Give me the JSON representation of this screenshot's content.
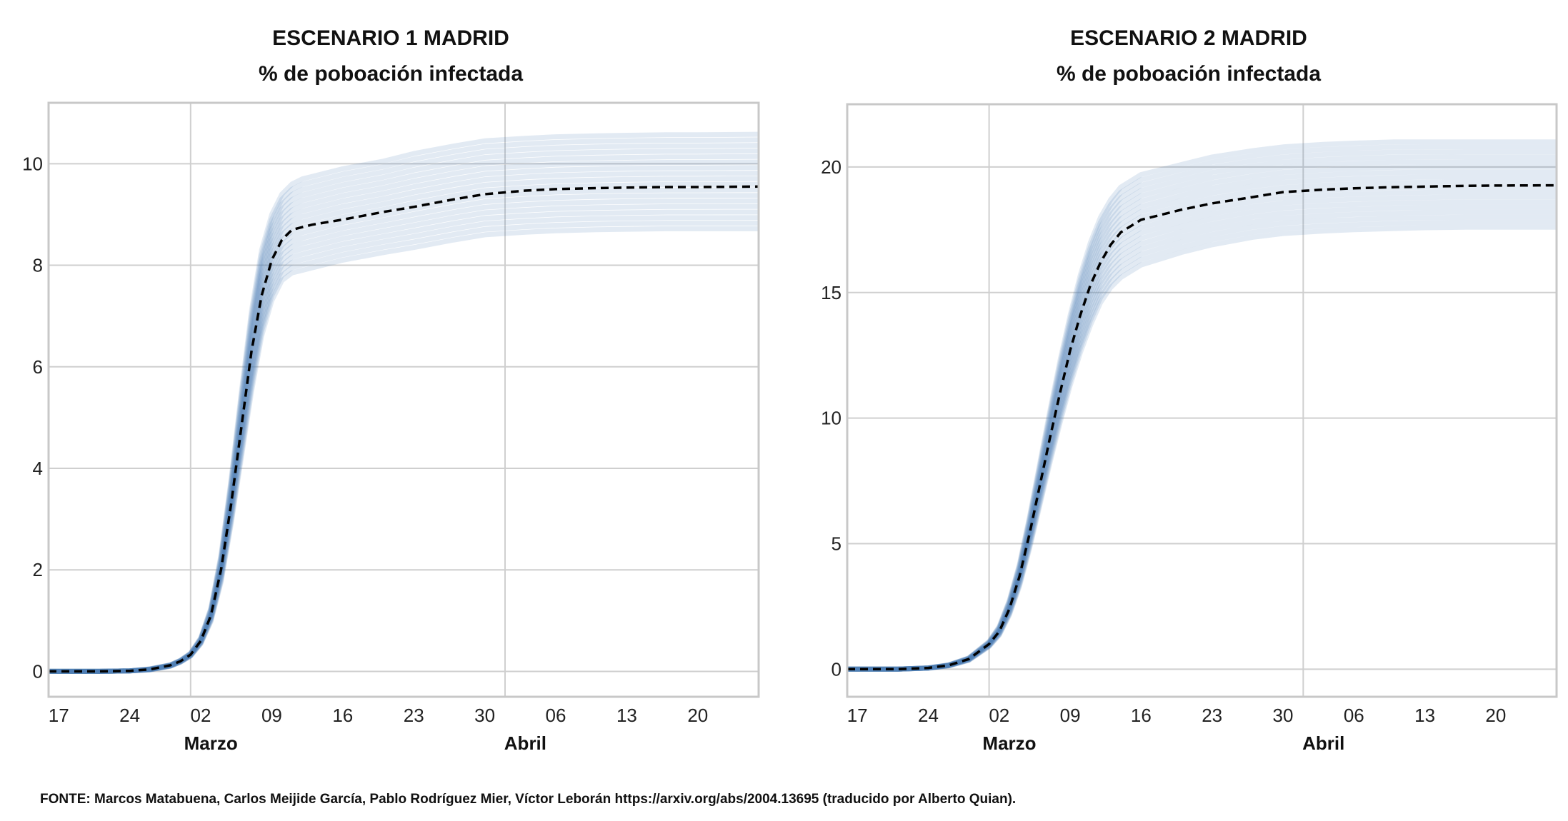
{
  "chart_data": [
    {
      "type": "line",
      "title": "ESCENARIO 1 MADRID",
      "subtitle": "% de poboación infectada",
      "x_tick_labels": [
        "17",
        "24",
        "02",
        "09",
        "16",
        "23",
        "30",
        "06",
        "13",
        "20"
      ],
      "x_ticks": [
        "2020-02-17",
        "2020-02-24",
        "2020-03-02",
        "2020-03-09",
        "2020-03-16",
        "2020-03-23",
        "2020-03-30",
        "2020-04-06",
        "2020-04-13",
        "2020-04-20"
      ],
      "month_labels": [
        {
          "date": "2020-03-03",
          "label": "Marzo"
        },
        {
          "date": "2020-04-03",
          "label": "Abril"
        }
      ],
      "month_separators": [
        "2020-03-01",
        "2020-04-01"
      ],
      "xlim": [
        "2020-02-16",
        "2020-04-26"
      ],
      "ylim": [
        -0.5,
        11.2
      ],
      "yticks": [
        0,
        2,
        4,
        6,
        8,
        10
      ],
      "grid": true,
      "band_line_count": 18,
      "series": [
        {
          "style": "dashed-black",
          "x": [
            "2020-02-16",
            "2020-02-21",
            "2020-02-24",
            "2020-02-26",
            "2020-02-28",
            "2020-02-29",
            "2020-03-01",
            "2020-03-02",
            "2020-03-03",
            "2020-03-04",
            "2020-03-05",
            "2020-03-06",
            "2020-03-07",
            "2020-03-08",
            "2020-03-09",
            "2020-03-10",
            "2020-03-11",
            "2020-03-12",
            "2020-03-13",
            "2020-03-16",
            "2020-03-20",
            "2020-03-23",
            "2020-03-27",
            "2020-03-30",
            "2020-04-03",
            "2020-04-06",
            "2020-04-10",
            "2020-04-13",
            "2020-04-17",
            "2020-04-20",
            "2020-04-26"
          ],
          "y": [
            0,
            0,
            0.01,
            0.04,
            0.12,
            0.2,
            0.33,
            0.6,
            1.1,
            2.0,
            3.3,
            4.8,
            6.3,
            7.4,
            8.1,
            8.5,
            8.7,
            8.75,
            8.8,
            8.9,
            9.05,
            9.15,
            9.3,
            9.4,
            9.47,
            9.5,
            9.52,
            9.53,
            9.54,
            9.54,
            9.55
          ],
          "band_top": [
            0,
            0,
            0.01,
            0.05,
            0.13,
            0.22,
            0.36,
            0.66,
            1.25,
            2.3,
            3.8,
            5.5,
            7.1,
            8.3,
            9.0,
            9.4,
            9.6,
            9.7,
            9.75,
            9.9,
            10.05,
            10.2,
            10.35,
            10.45,
            10.5,
            10.53,
            10.55,
            10.56,
            10.57,
            10.57,
            10.58
          ],
          "band_bottom": [
            0,
            0,
            0.01,
            0.03,
            0.1,
            0.18,
            0.3,
            0.54,
            0.98,
            1.75,
            2.9,
            4.2,
            5.5,
            6.6,
            7.3,
            7.7,
            7.85,
            7.9,
            7.95,
            8.1,
            8.25,
            8.35,
            8.5,
            8.6,
            8.65,
            8.68,
            8.7,
            8.71,
            8.72,
            8.72,
            8.72
          ]
        }
      ]
    },
    {
      "type": "line",
      "title": "ESCENARIO 2 MADRID",
      "subtitle": "% de poboación infectada",
      "x_tick_labels": [
        "17",
        "24",
        "02",
        "09",
        "16",
        "23",
        "30",
        "06",
        "13",
        "20"
      ],
      "x_ticks": [
        "2020-02-17",
        "2020-02-24",
        "2020-03-02",
        "2020-03-09",
        "2020-03-16",
        "2020-03-23",
        "2020-03-30",
        "2020-04-06",
        "2020-04-13",
        "2020-04-20"
      ],
      "month_labels": [
        {
          "date": "2020-03-03",
          "label": "Marzo"
        },
        {
          "date": "2020-04-03",
          "label": "Abril"
        }
      ],
      "month_separators": [
        "2020-03-01",
        "2020-04-01"
      ],
      "xlim": [
        "2020-02-16",
        "2020-04-26"
      ],
      "ylim": [
        -1.1,
        22.5
      ],
      "yticks": [
        0,
        5,
        10,
        15,
        20
      ],
      "grid": true,
      "band_line_count": 18,
      "series": [
        {
          "style": "dashed-black",
          "x": [
            "2020-02-16",
            "2020-02-21",
            "2020-02-24",
            "2020-02-26",
            "2020-02-28",
            "2020-03-01",
            "2020-03-02",
            "2020-03-03",
            "2020-03-04",
            "2020-03-05",
            "2020-03-06",
            "2020-03-07",
            "2020-03-08",
            "2020-03-09",
            "2020-03-10",
            "2020-03-11",
            "2020-03-12",
            "2020-03-13",
            "2020-03-14",
            "2020-03-16",
            "2020-03-20",
            "2020-03-23",
            "2020-03-27",
            "2020-03-30",
            "2020-04-03",
            "2020-04-06",
            "2020-04-10",
            "2020-04-13",
            "2020-04-17",
            "2020-04-20",
            "2020-04-26"
          ],
          "y": [
            0,
            0,
            0.05,
            0.15,
            0.4,
            1.0,
            1.5,
            2.4,
            3.7,
            5.4,
            7.3,
            9.2,
            11.0,
            12.7,
            14.1,
            15.3,
            16.2,
            16.9,
            17.4,
            17.9,
            18.3,
            18.55,
            18.8,
            19.0,
            19.1,
            19.15,
            19.2,
            19.22,
            19.25,
            19.26,
            19.27
          ],
          "band_top": [
            0,
            0,
            0.05,
            0.17,
            0.45,
            1.1,
            1.7,
            2.75,
            4.2,
            6.1,
            8.2,
            10.3,
            12.3,
            14.1,
            15.7,
            17.0,
            18.0,
            18.7,
            19.2,
            19.7,
            20.1,
            20.4,
            20.65,
            20.8,
            20.9,
            20.95,
            21.0,
            21.0,
            21.0,
            21.0,
            21.0
          ],
          "band_bottom": [
            0,
            0,
            0.04,
            0.13,
            0.35,
            0.9,
            1.35,
            2.15,
            3.3,
            4.8,
            6.5,
            8.2,
            9.8,
            11.3,
            12.6,
            13.7,
            14.6,
            15.2,
            15.6,
            16.1,
            16.6,
            16.9,
            17.2,
            17.35,
            17.45,
            17.5,
            17.55,
            17.58,
            17.6,
            17.6,
            17.6
          ]
        }
      ]
    }
  ],
  "source": "FONTE: Marcos Matabuena, Carlos Meijide García, Pablo Rodríguez Mier, Víctor Leborán https://arxiv.org/abs/2004.13695 (traducido por Alberto Quian).",
  "colors": {
    "band": "#4a7db5",
    "median": "#000000",
    "grid": "#cfcfcf",
    "frame": "#c8c8c8"
  }
}
